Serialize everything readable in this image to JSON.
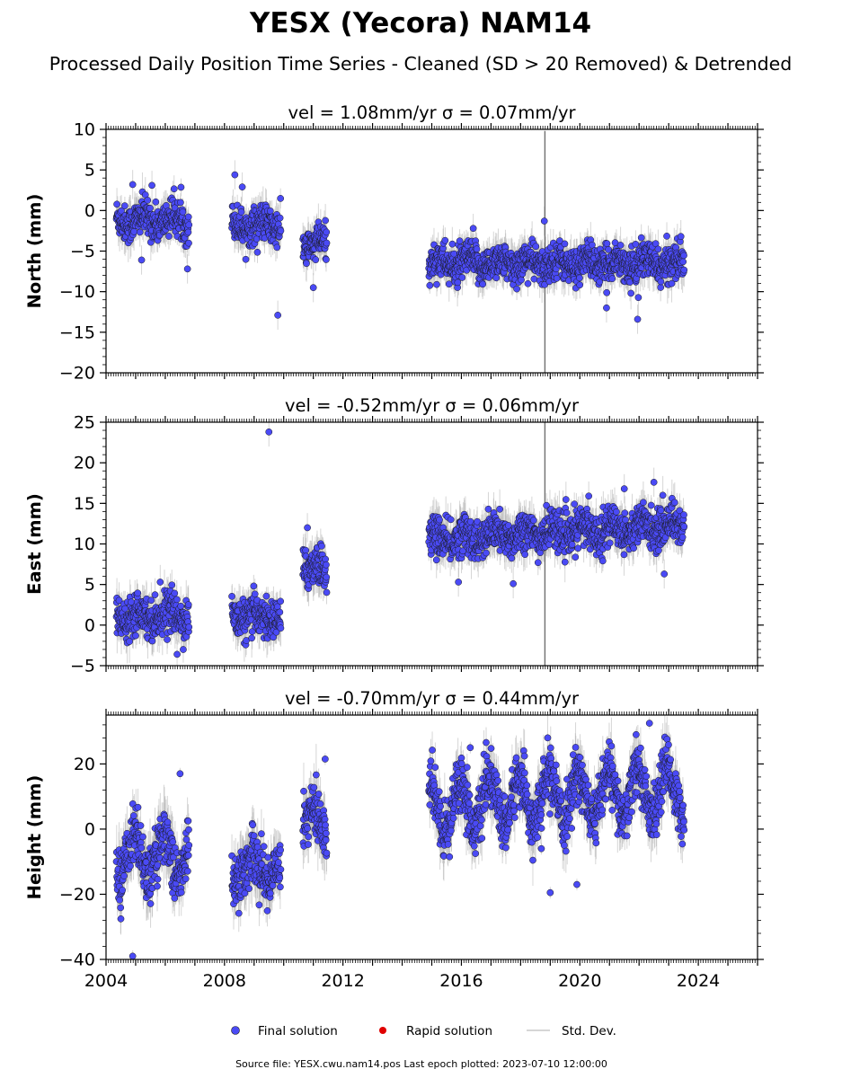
{
  "figure": {
    "title": "YESX (Yecora) NAM14",
    "subtitle": "Processed Daily Position Time Series - Cleaned (SD > 20 Removed) & Detrended",
    "source_note": "Source file: YESX.cwu.nam14.pos  Last epoch plotted: 2023-07-10 12:00:00"
  },
  "legend": {
    "final": "Final solution",
    "rapid": "Rapid solution",
    "std": "Std. Dev."
  },
  "colors": {
    "final": "#4a4af5",
    "final_edge": "#1a1a1a",
    "rapid": "#e00000",
    "std": "#b5b5b5"
  },
  "chart_data": [
    {
      "type": "scatter",
      "title": "vel = 1.08mm/yr   σ = 0.07mm/yr",
      "ylabel": "North (mm)",
      "xlim": [
        2004,
        2026
      ],
      "ylim": [
        -20,
        10
      ],
      "yticks": [
        -20,
        -15,
        -10,
        -5,
        0,
        5,
        10
      ],
      "xticks": [
        2004,
        2008,
        2012,
        2016,
        2020,
        2024
      ],
      "show_xticklabels": false,
      "segments": [
        {
          "start": 2004.35,
          "end": 2006.8,
          "mean": -1.2,
          "trend": 0.0,
          "seasonal": 0.6,
          "noise": 1.1
        },
        {
          "start": 2008.25,
          "end": 2009.9,
          "mean": -1.8,
          "trend": 0.0,
          "seasonal": 0.5,
          "noise": 1.1
        },
        {
          "start": 2010.65,
          "end": 2011.45,
          "mean": -4.2,
          "trend": 0.0,
          "seasonal": 0.5,
          "noise": 1.1
        },
        {
          "start": 2014.9,
          "end": 2023.52,
          "mean": -6.5,
          "trend": 0.0,
          "seasonal": 0.6,
          "noise": 1.1
        }
      ],
      "outliers": [
        [
          2004.9,
          3.2
        ],
        [
          2005.55,
          3.1
        ],
        [
          2005.2,
          -6.1
        ],
        [
          2006.75,
          -7.2
        ],
        [
          2008.35,
          4.4
        ],
        [
          2008.6,
          2.9
        ],
        [
          2009.8,
          -12.9
        ],
        [
          2011.0,
          -9.5
        ],
        [
          2018.8,
          -1.3
        ],
        [
          2021.95,
          -13.4
        ],
        [
          2020.9,
          -12.0
        ],
        [
          2016.4,
          -2.2
        ]
      ],
      "spike": {
        "x": 2018.82,
        "min": -20,
        "max": 9.8
      }
    },
    {
      "type": "scatter",
      "title": "vel = -0.52mm/yr   σ = 0.06mm/yr",
      "ylabel": "East (mm)",
      "xlim": [
        2004,
        2026
      ],
      "ylim": [
        -5,
        25
      ],
      "yticks": [
        -5,
        0,
        5,
        10,
        15,
        20,
        25
      ],
      "xticks": [
        2004,
        2008,
        2012,
        2016,
        2020,
        2024
      ],
      "show_xticklabels": false,
      "segments": [
        {
          "start": 2004.35,
          "end": 2006.8,
          "mean": 1.3,
          "trend": 0.0,
          "seasonal": 0.7,
          "noise": 1.2
        },
        {
          "start": 2008.25,
          "end": 2009.9,
          "mean": 1.0,
          "trend": 0.0,
          "seasonal": 0.5,
          "noise": 1.2
        },
        {
          "start": 2010.65,
          "end": 2011.45,
          "mean": 7.0,
          "trend": 0.0,
          "seasonal": 0.6,
          "noise": 1.3
        },
        {
          "start": 2014.9,
          "end": 2023.52,
          "mean": 10.5,
          "trend": 0.22,
          "seasonal": 0.7,
          "noise": 1.2
        }
      ],
      "outliers": [
        [
          2009.5,
          23.8
        ],
        [
          2006.4,
          -3.6
        ],
        [
          2010.8,
          12.0
        ],
        [
          2022.5,
          17.6
        ],
        [
          2022.85,
          6.3
        ],
        [
          2015.9,
          5.3
        ],
        [
          2017.75,
          5.1
        ],
        [
          2020.3,
          15.9
        ],
        [
          2021.5,
          16.8
        ]
      ],
      "spike": {
        "x": 2018.82,
        "min": -5,
        "max": 25
      }
    },
    {
      "type": "scatter",
      "title": "vel = -0.70mm/yr   σ = 0.44mm/yr",
      "ylabel": "Height (mm)",
      "xlim": [
        2004,
        2026
      ],
      "ylim": [
        -40,
        35
      ],
      "yticks": [
        -40,
        -20,
        0,
        20
      ],
      "xticks": [
        2004,
        2008,
        2012,
        2016,
        2020,
        2024
      ],
      "show_xticklabels": true,
      "segments": [
        {
          "start": 2004.35,
          "end": 2006.8,
          "mean": -8.0,
          "trend": 0.0,
          "seasonal": 7.0,
          "noise": 4.2
        },
        {
          "start": 2008.25,
          "end": 2009.9,
          "mean": -12.0,
          "trend": 0.0,
          "seasonal": 4.0,
          "noise": 4.2
        },
        {
          "start": 2010.65,
          "end": 2011.45,
          "mean": 2.0,
          "trend": 0.0,
          "seasonal": 4.0,
          "noise": 4.5
        },
        {
          "start": 2014.9,
          "end": 2023.52,
          "mean": 7.0,
          "trend": 0.6,
          "seasonal": 7.5,
          "noise": 4.0
        }
      ],
      "outliers": [
        [
          2004.9,
          -39.0
        ],
        [
          2006.5,
          17.0
        ],
        [
          2011.4,
          21.5
        ],
        [
          2019.0,
          -19.5
        ],
        [
          2019.9,
          -17.0
        ],
        [
          2022.35,
          32.5
        ],
        [
          2015.6,
          -8.5
        ],
        [
          2018.7,
          -6.0
        ],
        [
          2016.3,
          25.0
        ],
        [
          2021.9,
          29.0
        ]
      ],
      "spike": null
    }
  ]
}
